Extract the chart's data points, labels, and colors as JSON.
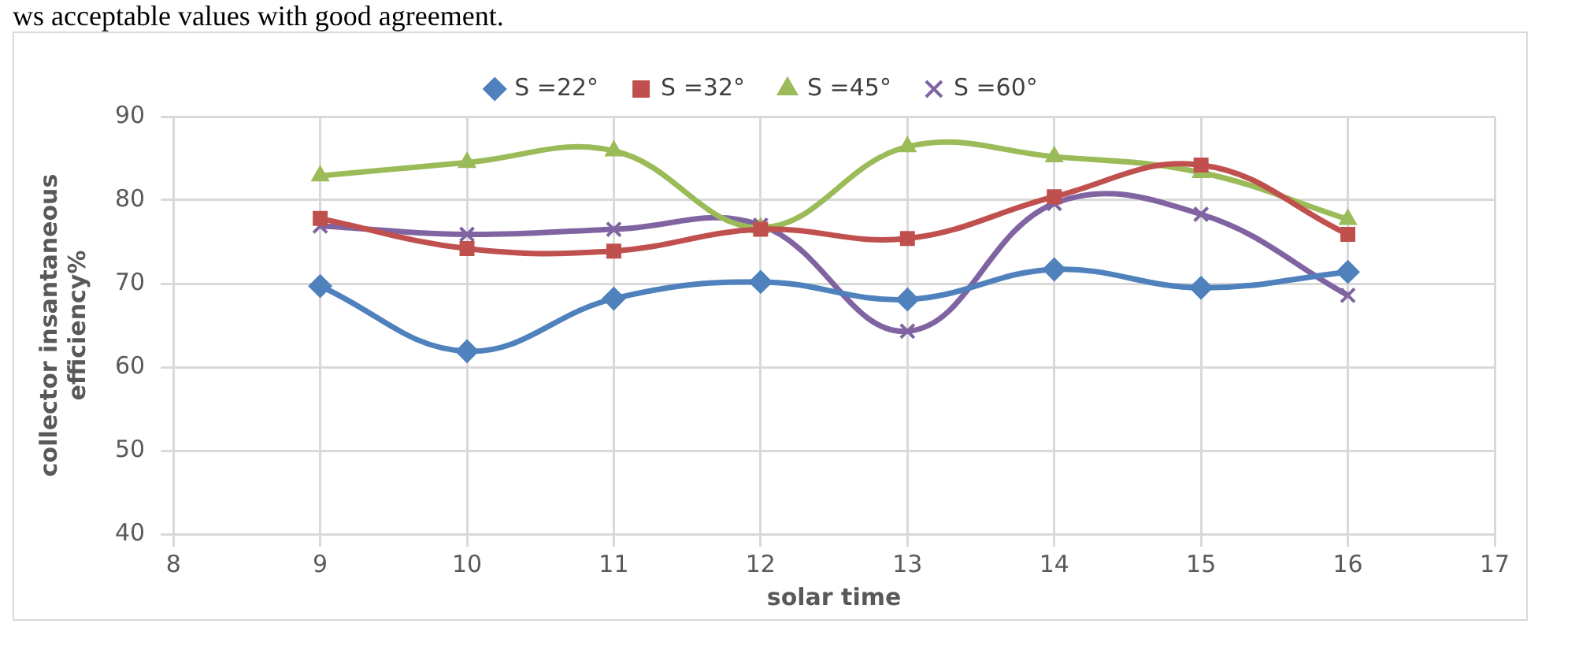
{
  "chart_data": {
    "type": "line",
    "xlabel": "solar time",
    "ylabel": "collector insantaneous efficiency%",
    "annotations": [
      "ws acceptable values with good agreement."
    ],
    "x": [
      9,
      10,
      11,
      12,
      13,
      14,
      15,
      16
    ],
    "xlim": [
      8,
      17
    ],
    "xticks": [
      8,
      9,
      10,
      11,
      12,
      13,
      14,
      15,
      16,
      17
    ],
    "ylim": [
      40,
      90
    ],
    "yticks": [
      40,
      50,
      60,
      70,
      80,
      90
    ],
    "grid": true,
    "legend": "top",
    "series": [
      {
        "name": "S =22°",
        "color": "#4f81bd",
        "marker": "diamond",
        "values": [
          69.7,
          61.9,
          68.2,
          70.2,
          68.1,
          71.7,
          69.5,
          71.4
        ]
      },
      {
        "name": "S =32°",
        "color": "#c0504d",
        "marker": "square",
        "values": [
          77.8,
          74.2,
          73.9,
          76.5,
          75.4,
          80.4,
          84.2,
          75.9
        ]
      },
      {
        "name": "S =45°",
        "color": "#9bbb59",
        "marker": "triangle",
        "values": [
          82.9,
          84.5,
          85.9,
          76.7,
          86.4,
          85.2,
          83.3,
          77.7
        ]
      },
      {
        "name": "S =60°",
        "color": "#8064a2",
        "marker": "cross",
        "values": [
          76.9,
          75.9,
          76.5,
          77.0,
          64.3,
          79.6,
          78.3,
          68.6
        ]
      }
    ]
  }
}
